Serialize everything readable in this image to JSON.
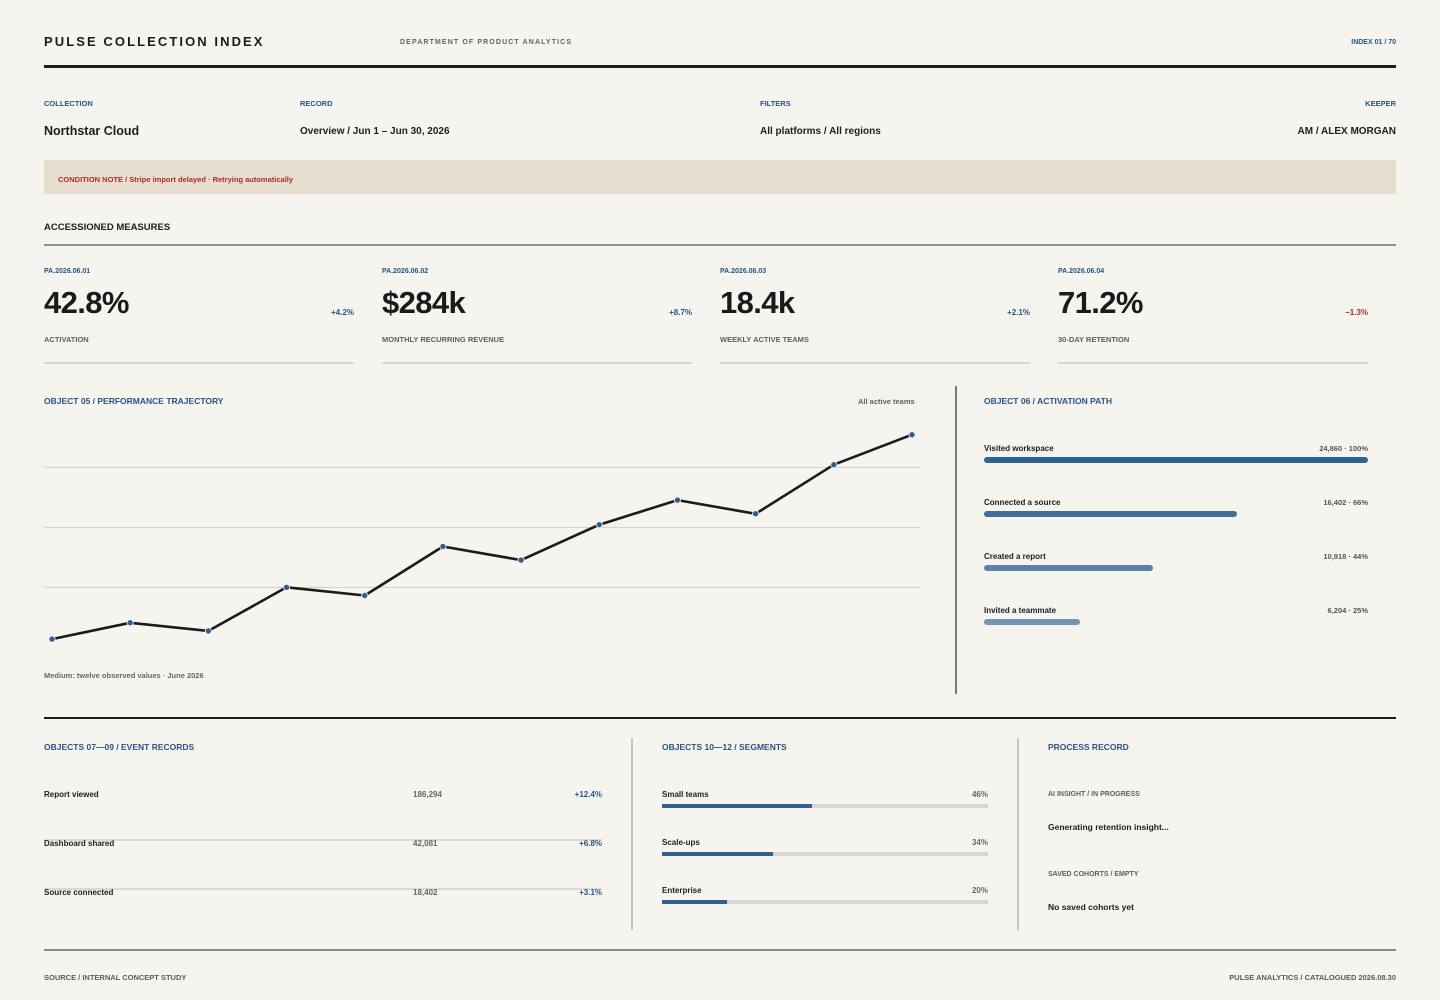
{
  "header": {
    "title": "PULSE COLLECTION INDEX",
    "department": "DEPARTMENT OF PRODUCT ANALYTICS",
    "index": "INDEX 01 / 70"
  },
  "meta": {
    "collection_label": "COLLECTION",
    "collection_value": "Northstar Cloud",
    "record_label": "RECORD",
    "record_value": "Overview / Jun 1 – Jun 30, 2026",
    "filters_label": "FILTERS",
    "filters_value": "All platforms / All regions",
    "keeper_label": "KEEPER",
    "keeper_value": "AM / ALEX MORGAN"
  },
  "notice": {
    "text": "CONDITION NOTE / Stripe import delayed · Retrying automatically",
    "color": "#a72e29"
  },
  "measures": {
    "title": "ACCESSIONED MEASURES",
    "items": [
      {
        "id": "PA.2026.06.01",
        "value": "42.8%",
        "delta": "+4.2%",
        "label": "ACTIVATION",
        "delta_color": "#285486"
      },
      {
        "id": "PA.2026.06.02",
        "value": "$284k",
        "delta": "+8.7%",
        "label": "MONTHLY RECURRING REVENUE",
        "delta_color": "#285486"
      },
      {
        "id": "PA.2026.06.03",
        "value": "18.4k",
        "delta": "+2.1%",
        "label": "WEEKLY ACTIVE TEAMS",
        "delta_color": "#285486"
      },
      {
        "id": "PA.2026.06.04",
        "value": "71.2%",
        "delta": "−1.3%",
        "label": "30-DAY RETENTION",
        "delta_color": "#a72e29"
      }
    ]
  },
  "trajectory": {
    "title": "OBJECT 05 / PERFORMANCE TRAJECTORY",
    "filter": "All active teams",
    "footnote": "Medium: twelve observed values · June 2026"
  },
  "chart_data": {
    "type": "line",
    "title": "OBJECT 05 / PERFORMANCE TRAJECTORY",
    "x": [
      1,
      2,
      3,
      4,
      5,
      6,
      7,
      8,
      9,
      10,
      11,
      12
    ],
    "series": [
      {
        "values": [
          4,
          10,
          7,
          23,
          20,
          38,
          33,
          46,
          55,
          50,
          68,
          79
        ]
      }
    ],
    "ylim": [
      0,
      80
    ],
    "grid": "horizontal",
    "line_color": "#1b1b1b",
    "point_color": "#2f5e92"
  },
  "activation_path": {
    "title": "OBJECT 06 / ACTIVATION PATH",
    "steps": [
      {
        "label": "Visited workspace",
        "value": "24,860 · 100%",
        "fraction": 1.0,
        "color": "#315f8e"
      },
      {
        "label": "Connected a source",
        "value": "16,402 · 66%",
        "fraction": 0.66,
        "color": "#426d98"
      },
      {
        "label": "Created a report",
        "value": "10,918 · 44%",
        "fraction": 0.44,
        "color": "#5b81a8"
      },
      {
        "label": "Invited a teammate",
        "value": "6,204 · 25%",
        "fraction": 0.25,
        "color": "#7393b1"
      }
    ]
  },
  "event_records": {
    "title": "OBJECTS 07—09 / EVENT RECORDS",
    "rows": [
      {
        "name": "Report viewed",
        "count": "186,294",
        "change": "+12.4%"
      },
      {
        "name": "Dashboard shared",
        "count": "42,081",
        "change": "+6.8%"
      },
      {
        "name": "Source connected",
        "count": "18,402",
        "change": "+3.1%"
      }
    ]
  },
  "segments": {
    "title": "OBJECTS 10—12 / SEGMENTS",
    "items": [
      {
        "name": "Small teams",
        "pct": "46%",
        "fraction": 0.46
      },
      {
        "name": "Scale-ups",
        "pct": "34%",
        "fraction": 0.34
      },
      {
        "name": "Enterprise",
        "pct": "20%",
        "fraction": 0.2
      }
    ]
  },
  "process_record": {
    "title": "PROCESS RECORD",
    "insight_label": "AI INSIGHT / IN PROGRESS",
    "insight_value": "Generating retention insight...",
    "cohorts_label": "SAVED COHORTS / EMPTY",
    "cohorts_value": "No saved cohorts yet"
  },
  "footer": {
    "left": "SOURCE / INTERNAL CONCEPT STUDY",
    "right": "PULSE ANALYTICS / CATALOGUED 2026.08.30"
  }
}
